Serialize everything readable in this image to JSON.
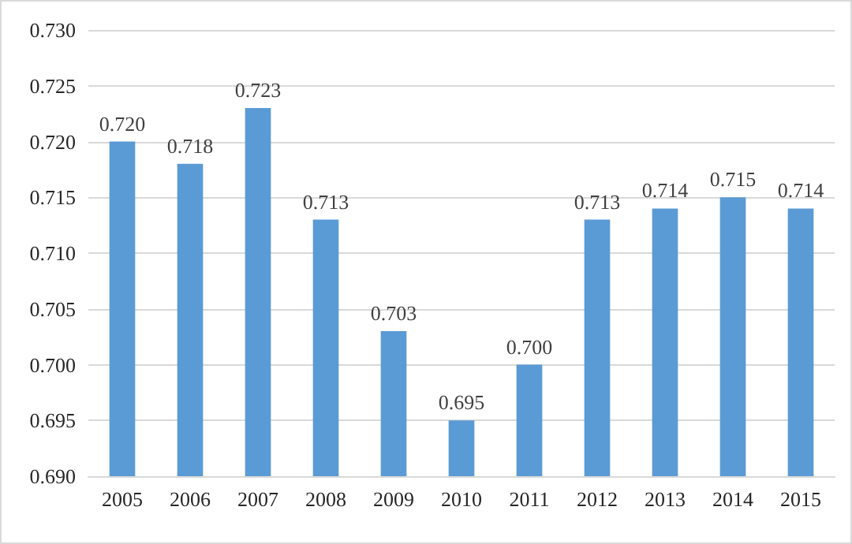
{
  "chart_data": {
    "type": "bar",
    "categories": [
      "2005",
      "2006",
      "2007",
      "2008",
      "2009",
      "2010",
      "2011",
      "2012",
      "2013",
      "2014",
      "2015"
    ],
    "values": [
      0.72,
      0.718,
      0.723,
      0.713,
      0.703,
      0.695,
      0.7,
      0.713,
      0.714,
      0.715,
      0.714
    ],
    "value_labels": [
      "0.720",
      "0.718",
      "0.723",
      "0.713",
      "0.703",
      "0.695",
      "0.700",
      "0.713",
      "0.714",
      "0.715",
      "0.714"
    ],
    "color": "#5b9bd5",
    "ylim": [
      0.69,
      0.73
    ],
    "yticks": [
      {
        "value": 0.69,
        "label": "0.690"
      },
      {
        "value": 0.695,
        "label": "0.695"
      },
      {
        "value": 0.7,
        "label": "0.700"
      },
      {
        "value": 0.705,
        "label": "0.705"
      },
      {
        "value": 0.71,
        "label": "0.710"
      },
      {
        "value": 0.715,
        "label": "0.715"
      },
      {
        "value": 0.72,
        "label": "0.720"
      },
      {
        "value": 0.725,
        "label": "0.725"
      },
      {
        "value": 0.73,
        "label": "0.730"
      }
    ],
    "grid": "y"
  }
}
